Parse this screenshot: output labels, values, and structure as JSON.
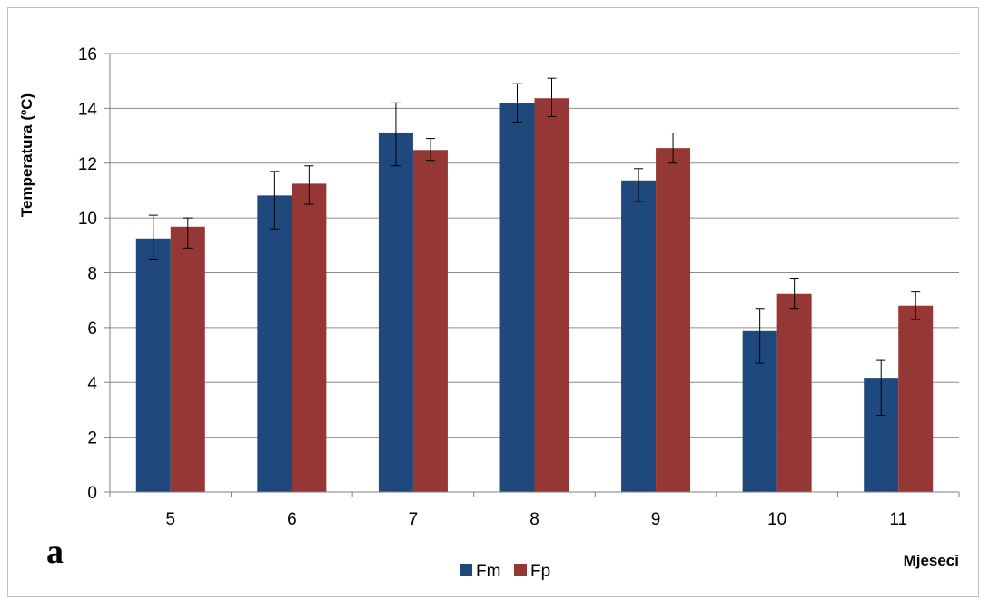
{
  "chart_data": {
    "type": "bar",
    "categories": [
      "5",
      "6",
      "7",
      "8",
      "9",
      "10",
      "11"
    ],
    "series": [
      {
        "name": "Fm",
        "color": "#1f497d",
        "values": [
          9.25,
          10.82,
          13.12,
          14.2,
          11.37,
          5.87,
          4.17
        ],
        "error_low": [
          8.5,
          9.6,
          11.9,
          13.5,
          10.6,
          4.7,
          2.8
        ],
        "error_high": [
          10.1,
          11.7,
          14.2,
          14.9,
          11.8,
          6.7,
          4.8
        ]
      },
      {
        "name": "Fp",
        "color": "#953735",
        "values": [
          9.68,
          11.25,
          12.48,
          14.37,
          12.55,
          7.23,
          6.8
        ],
        "error_low": [
          8.9,
          10.5,
          12.1,
          13.7,
          12.0,
          6.7,
          6.3
        ],
        "error_high": [
          10.0,
          11.9,
          12.9,
          15.1,
          13.1,
          7.8,
          7.3
        ]
      }
    ],
    "ylabel": "Temperatura (ºC)",
    "xlabel": "Mjeseci",
    "ylim": [
      0,
      16
    ],
    "yticks": [
      "0",
      "2",
      "4",
      "6",
      "8",
      "10",
      "12",
      "14",
      "16"
    ],
    "grid": true,
    "legend_position": "bottom",
    "panel_label": "a"
  }
}
